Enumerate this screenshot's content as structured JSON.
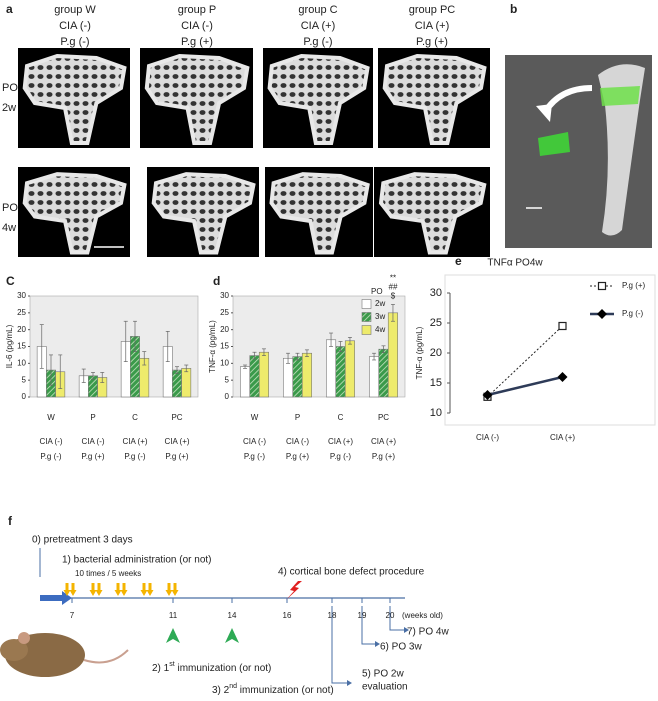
{
  "panel_a": {
    "label": "a",
    "columns": [
      {
        "name": "group W",
        "cia": "CIA (-)",
        "pg": "P.g (-)"
      },
      {
        "name": "group P",
        "cia": "CIA (-)",
        "pg": "P.g (+)"
      },
      {
        "name": "group C",
        "cia": "CIA (+)",
        "pg": "P.g (-)"
      },
      {
        "name": "group PC",
        "cia": "CIA (+)",
        "pg": "P.g (+)"
      }
    ],
    "rows": [
      {
        "po": "PO",
        "week": "2w"
      },
      {
        "po": "PO",
        "week": "4w"
      }
    ]
  },
  "panel_b": {
    "label": "b"
  },
  "chart_data": [
    {
      "type": "bar",
      "label": "C",
      "y_label": "IL-6 (pg/mL)",
      "categories": [
        "W",
        "P",
        "C",
        "PC"
      ],
      "groups": [
        {
          "cia": "CIA (-)",
          "pg": "P.g (-)"
        },
        {
          "cia": "CIA (-)",
          "pg": "P.g (+)"
        },
        {
          "cia": "CIA (+)",
          "pg": "P.g (-)"
        },
        {
          "cia": "CIA (+)",
          "pg": "P.g (+)"
        }
      ],
      "series": [
        {
          "name": "2w",
          "color": "#ffffff",
          "values": [
            15,
            6.3,
            16.5,
            15
          ],
          "errors": [
            6.5,
            2,
            6,
            4.5
          ]
        },
        {
          "name": "3w",
          "color": "#3a9a4a",
          "hatch": true,
          "values": [
            8,
            6.3,
            18,
            8
          ],
          "errors": [
            4.5,
            1,
            4.5,
            1
          ]
        },
        {
          "name": "4w",
          "color": "#eeeb6c",
          "values": [
            7.5,
            5.8,
            11.5,
            8.5
          ],
          "errors": [
            5,
            1.5,
            2,
            1
          ]
        }
      ],
      "ylim": [
        0,
        30
      ],
      "yticks": [
        0,
        5,
        10,
        15,
        20,
        25,
        30
      ],
      "legend": false
    },
    {
      "type": "bar",
      "label": "d",
      "y_label": "TNF-α (pg/mL)",
      "categories": [
        "W",
        "P",
        "C",
        "PC"
      ],
      "groups": [
        {
          "cia": "CIA (-)",
          "pg": "P.g (-)"
        },
        {
          "cia": "CIA (-)",
          "pg": "P.g (+)"
        },
        {
          "cia": "CIA (+)",
          "pg": "P.g (-)"
        },
        {
          "cia": "CIA (+)",
          "pg": "P.g (+)"
        }
      ],
      "series": [
        {
          "name": "2w",
          "color": "#ffffff",
          "values": [
            9,
            11.5,
            17,
            12
          ],
          "errors": [
            0.5,
            1.5,
            2,
            1
          ]
        },
        {
          "name": "3w",
          "color": "#3a9a4a",
          "hatch": true,
          "values": [
            12.3,
            12,
            15,
            14.2
          ],
          "errors": [
            1,
            1,
            1.5,
            1
          ]
        },
        {
          "name": "4w",
          "color": "#eeeb6c",
          "values": [
            13.3,
            13,
            16.7,
            25
          ],
          "errors": [
            1,
            1,
            1,
            2.5
          ]
        }
      ],
      "ylim": [
        0,
        30
      ],
      "yticks": [
        0,
        5,
        10,
        15,
        20,
        25,
        30
      ],
      "legend": true,
      "legend_title": "PO",
      "annotations": [
        "**",
        "##",
        "$"
      ]
    },
    {
      "type": "line",
      "label": "e",
      "title": "TNFα   PO4w",
      "y_label": "TNF-α (pg/mL)",
      "categories": [
        "CIA (-)",
        "CIA (+)"
      ],
      "series": [
        {
          "name": "P.g (+)",
          "color": "#222222",
          "marker": "square",
          "line": "dotted",
          "values": [
            12.7,
            24.5
          ]
        },
        {
          "name": "P.g (-)",
          "color": "#2e3b58",
          "marker": "diamond",
          "line": "solid",
          "values": [
            13,
            16
          ]
        }
      ],
      "ylim": [
        10,
        30
      ],
      "yticks": [
        10,
        15,
        20,
        25,
        30
      ]
    }
  ],
  "panel_f": {
    "label": "f",
    "pretreatment": "0) pretreatment 3 days",
    "bacteria": "1) bacterial administration (or not)",
    "frequency": "10 times / 5 weeks",
    "defect": "4)  cortical bone defect procedure",
    "weeks": [
      "7",
      "11",
      "14",
      "16",
      "18",
      "19",
      "20"
    ],
    "weeks_unit": "(weeks old)",
    "po4w": "7) PO 4w",
    "po3w": "6) PO 3w",
    "po2w": "5) PO 2w",
    "evaluation": "evaluation",
    "immunization1": {
      "pre": "2) 1",
      "sup": "st",
      "post": " immunization  (or not)"
    },
    "immunization2": {
      "pre": "3) 2",
      "sup": "nd",
      "post": " immunization  (or not)"
    }
  }
}
